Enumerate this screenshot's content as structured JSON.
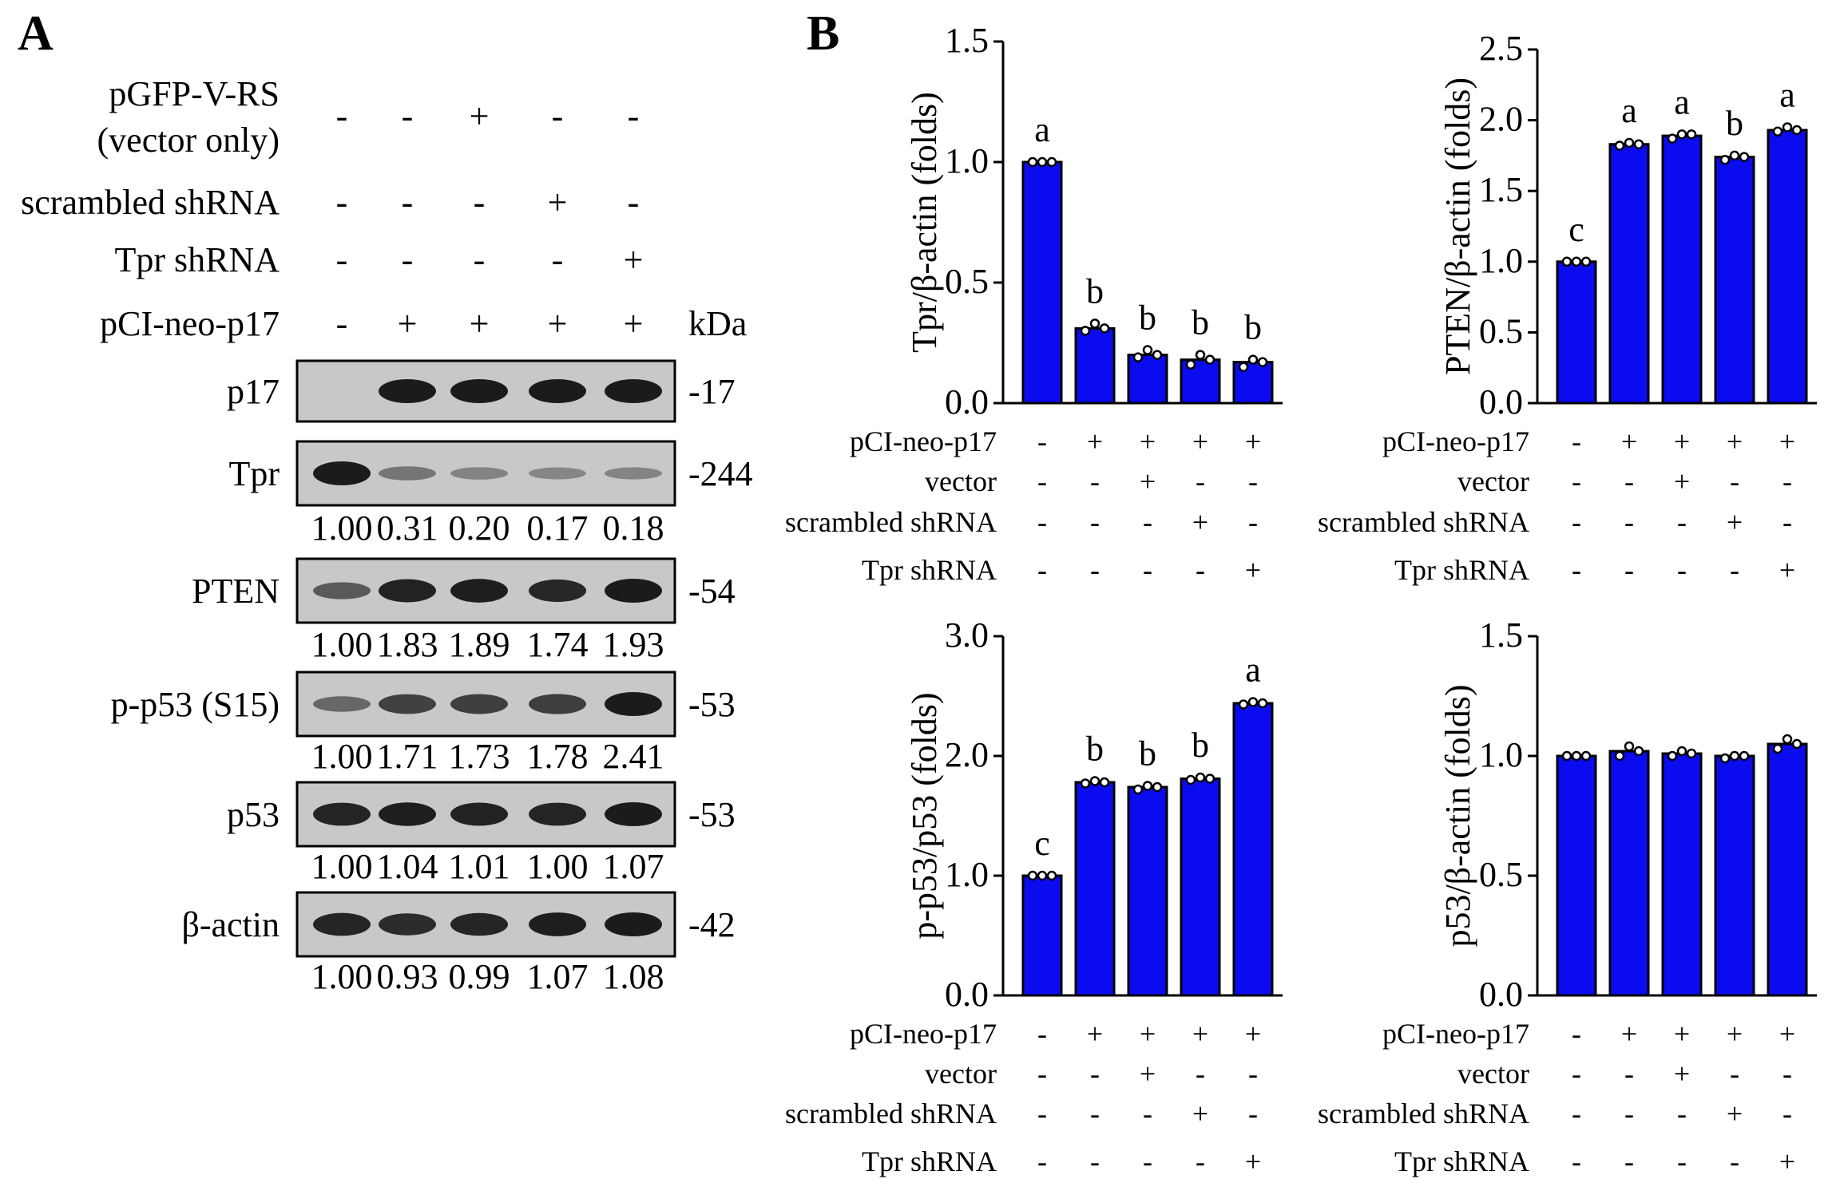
{
  "panel_a": {
    "letter": "A",
    "condition_rows": [
      {
        "label_lines": [
          "pGFP-V-RS",
          "(vector only)"
        ],
        "signs": [
          "-",
          "-",
          "+",
          "-",
          "-"
        ]
      },
      {
        "label_lines": [
          "scrambled shRNA"
        ],
        "signs": [
          "-",
          "-",
          "-",
          "+",
          "-"
        ]
      },
      {
        "label_lines": [
          "Tpr shRNA"
        ],
        "signs": [
          "-",
          "-",
          "-",
          "-",
          "+"
        ]
      },
      {
        "label_lines": [
          "pCI-neo-p17"
        ],
        "signs": [
          "-",
          "+",
          "+",
          "+",
          "+"
        ]
      }
    ],
    "kda_header": "kDa",
    "blots": [
      {
        "label": "p17",
        "kda": "-17",
        "intensity": [
          0.0,
          1.0,
          1.0,
          1.0,
          1.0
        ],
        "quant": []
      },
      {
        "label": "Tpr",
        "kda": "-244",
        "intensity": [
          1.0,
          0.31,
          0.2,
          0.17,
          0.18
        ],
        "quant": [
          "1.00",
          "0.31",
          "0.20",
          "0.17",
          "0.18"
        ]
      },
      {
        "label": "PTEN",
        "kda": "-54",
        "intensity": [
          1.0,
          1.83,
          1.89,
          1.74,
          1.93
        ],
        "quant": [
          "1.00",
          "1.83",
          "1.89",
          "1.74",
          "1.93"
        ]
      },
      {
        "label": "p-p53 (S15)",
        "kda": "-53",
        "intensity": [
          1.0,
          1.71,
          1.73,
          1.78,
          2.41
        ],
        "quant": [
          "1.00",
          "1.71",
          "1.73",
          "1.78",
          "2.41"
        ]
      },
      {
        "label": "p53",
        "kda": "-53",
        "intensity": [
          1.0,
          1.04,
          1.01,
          1.0,
          1.07
        ],
        "quant": [
          "1.00",
          "1.04",
          "1.01",
          "1.00",
          "1.07"
        ]
      },
      {
        "label": "β-actin",
        "kda": "-42",
        "intensity": [
          1.0,
          0.93,
          0.99,
          1.07,
          1.08
        ],
        "quant": [
          "1.00",
          "0.93",
          "0.99",
          "1.07",
          "1.08"
        ]
      }
    ]
  },
  "panel_b": {
    "letter": "B"
  },
  "chart_data": [
    {
      "type": "bar",
      "ylabel": "Tpr/β-actin (folds)",
      "ylim": [
        0,
        1.5
      ],
      "yticks": [
        "0.0",
        "0.5",
        "1.0",
        "1.5"
      ],
      "values": [
        1.0,
        0.31,
        0.2,
        0.18,
        0.17
      ],
      "points": [
        [
          1.0,
          1.0,
          1.0
        ],
        [
          0.3,
          0.33,
          0.31
        ],
        [
          0.19,
          0.22,
          0.2
        ],
        [
          0.16,
          0.2,
          0.18
        ],
        [
          0.15,
          0.18,
          0.17
        ]
      ],
      "sig_letters": [
        "a",
        "b",
        "b",
        "b",
        "b"
      ],
      "bar_color": "#0b0bf0",
      "conditions": [
        {
          "label": "pCI-neo-p17",
          "signs": [
            "-",
            "+",
            "+",
            "+",
            "+"
          ]
        },
        {
          "label": "vector",
          "signs": [
            "-",
            "-",
            "+",
            "-",
            "-"
          ]
        },
        {
          "label": "scrambled shRNA",
          "signs": [
            "-",
            "-",
            "-",
            "+",
            "-"
          ]
        },
        {
          "label": "Tpr shRNA",
          "signs": [
            "-",
            "-",
            "-",
            "-",
            "+"
          ]
        }
      ]
    },
    {
      "type": "bar",
      "ylabel": "PTEN/β-actin (folds)",
      "ylim": [
        0,
        2.5
      ],
      "yticks": [
        "0.0",
        "0.5",
        "1.0",
        "1.5",
        "2.0",
        "2.5"
      ],
      "values": [
        1.0,
        1.83,
        1.89,
        1.74,
        1.93
      ],
      "points": [
        [
          1.0,
          1.0,
          1.0
        ],
        [
          1.82,
          1.84,
          1.83
        ],
        [
          1.87,
          1.9,
          1.9
        ],
        [
          1.72,
          1.75,
          1.74
        ],
        [
          1.92,
          1.95,
          1.93
        ]
      ],
      "sig_letters": [
        "c",
        "a",
        "a",
        "b",
        "a"
      ],
      "bar_color": "#0b0bf0",
      "conditions": [
        {
          "label": "pCI-neo-p17",
          "signs": [
            "-",
            "+",
            "+",
            "+",
            "+"
          ]
        },
        {
          "label": "vector",
          "signs": [
            "-",
            "-",
            "+",
            "-",
            "-"
          ]
        },
        {
          "label": "scrambled shRNA",
          "signs": [
            "-",
            "-",
            "-",
            "+",
            "-"
          ]
        },
        {
          "label": "Tpr shRNA",
          "signs": [
            "-",
            "-",
            "-",
            "-",
            "+"
          ]
        }
      ]
    },
    {
      "type": "bar",
      "ylabel": "p-p53/p53 (folds)",
      "ylim": [
        0,
        3.0
      ],
      "yticks": [
        "0.0",
        "1.0",
        "2.0",
        "3.0"
      ],
      "values": [
        1.0,
        1.78,
        1.74,
        1.81,
        2.44
      ],
      "points": [
        [
          1.0,
          1.0,
          1.0
        ],
        [
          1.77,
          1.79,
          1.78
        ],
        [
          1.72,
          1.75,
          1.74
        ],
        [
          1.8,
          1.82,
          1.81
        ],
        [
          2.43,
          2.45,
          2.44
        ]
      ],
      "sig_letters": [
        "c",
        "b",
        "b",
        "b",
        "a"
      ],
      "bar_color": "#0b0bf0",
      "conditions": [
        {
          "label": "pCI-neo-p17",
          "signs": [
            "-",
            "+",
            "+",
            "+",
            "+"
          ]
        },
        {
          "label": "vector",
          "signs": [
            "-",
            "-",
            "+",
            "-",
            "-"
          ]
        },
        {
          "label": "scrambled shRNA",
          "signs": [
            "-",
            "-",
            "-",
            "+",
            "-"
          ]
        },
        {
          "label": "Tpr shRNA",
          "signs": [
            "-",
            "-",
            "-",
            "-",
            "+"
          ]
        }
      ]
    },
    {
      "type": "bar",
      "ylabel": "p53/β-actin (folds)",
      "ylim": [
        0,
        1.5
      ],
      "yticks": [
        "0.0",
        "0.5",
        "1.0",
        "1.5"
      ],
      "values": [
        1.0,
        1.02,
        1.01,
        1.0,
        1.05
      ],
      "points": [
        [
          1.0,
          1.0,
          1.0
        ],
        [
          1.0,
          1.04,
          1.02
        ],
        [
          1.0,
          1.02,
          1.01
        ],
        [
          0.99,
          1.0,
          1.0
        ],
        [
          1.03,
          1.07,
          1.05
        ]
      ],
      "sig_letters": [
        "",
        "",
        "",
        "",
        ""
      ],
      "bar_color": "#0b0bf0",
      "conditions": [
        {
          "label": "pCI-neo-p17",
          "signs": [
            "-",
            "+",
            "+",
            "+",
            "+"
          ]
        },
        {
          "label": "vector",
          "signs": [
            "-",
            "-",
            "+",
            "-",
            "-"
          ]
        },
        {
          "label": "scrambled shRNA",
          "signs": [
            "-",
            "-",
            "-",
            "+",
            "-"
          ]
        },
        {
          "label": "Tpr shRNA",
          "signs": [
            "-",
            "-",
            "-",
            "-",
            "+"
          ]
        }
      ]
    }
  ]
}
